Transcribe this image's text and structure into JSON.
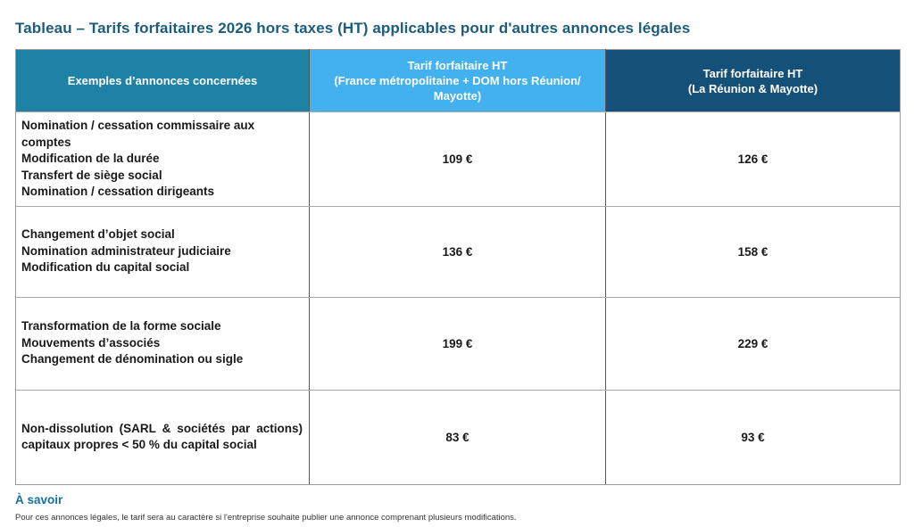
{
  "title": "Tableau – Tarifs forfaitaires 2026 hors taxes (HT) applicables pour d'autres annonces légales",
  "colors": {
    "title_text": "#1c5d7e",
    "header_examples_bg": "#1e82a6",
    "header_metropole_bg": "#42b1ee",
    "header_reunion_bg": "#155078",
    "header_text": "#ffffff",
    "body_text": "#1a1a1a",
    "border_outer": "#9b9b9b",
    "border_row": "#a8a8a8",
    "border_col": "#585858",
    "footer_heading_text": "#17719a"
  },
  "table": {
    "columns": [
      {
        "label": "Exemples d’annonces concernées"
      },
      {
        "line1": "Tarif forfaitaire HT",
        "line2": "(France métropolitaine + DOM hors Réunion/ Mayotte)"
      },
      {
        "line1": "Tarif forfaitaire HT",
        "line2": "(La Réunion & Mayotte)"
      }
    ],
    "rows": [
      {
        "examples": [
          "Nomination / cessation commissaire aux comptes",
          "Modification de la durée",
          "Transfert de siège social",
          "Nomination / cessation dirigeants"
        ],
        "tarif_metropole": "109 €",
        "tarif_reunion": "126 €"
      },
      {
        "examples": [
          "Changement d’objet social",
          "Nomination administrateur judiciaire",
          "Modification du capital social"
        ],
        "tarif_metropole": "136 €",
        "tarif_reunion": "158 €"
      },
      {
        "examples": [
          "Transformation de la forme sociale",
          "Mouvements d’associés",
          "Changement de dénomination ou sigle"
        ],
        "tarif_metropole": "199 €",
        "tarif_reunion": "229 €"
      },
      {
        "examples": [
          "Non-dissolution (SARL & sociétés par actions) capitaux propres < 50 % du capital social"
        ],
        "tarif_metropole": "83 €",
        "tarif_reunion": "93 €"
      }
    ]
  },
  "footer": {
    "heading": "À savoir",
    "note": "Pour ces annonces légales, le tarif sera au caractère si l'entreprise souhaite publier une annonce comprenant plusieurs modifications."
  }
}
